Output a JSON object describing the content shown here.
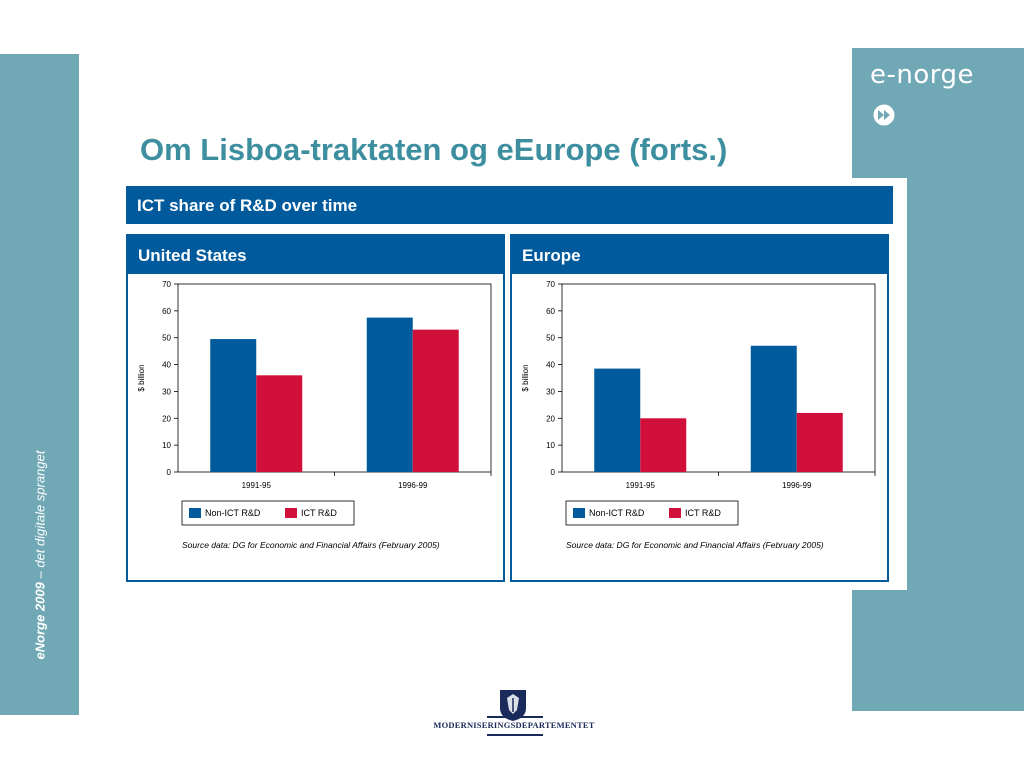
{
  "sidebar": {
    "brand": "eNorge 2009",
    "tagline": "det digitale spranget",
    "separator": " – "
  },
  "logo": {
    "text": "e-norge",
    "color": "#ffffff"
  },
  "slide": {
    "title": "Om Lisboa-traktaten og eEurope (forts.)",
    "title_color": "#3d8fa0"
  },
  "figure": {
    "header": "ICT share of R&D over time",
    "header_color": "#005a9c",
    "source": "Source data: DG for Economic and Financial Affairs (February 2005)"
  },
  "chart_data": [
    {
      "type": "bar",
      "title": "United States",
      "categories": [
        "1991-95",
        "1996-99"
      ],
      "series": [
        {
          "name": "Non-ICT R&D",
          "color": "#005a9c",
          "values": [
            49.5,
            57.5
          ]
        },
        {
          "name": "ICT R&D",
          "color": "#d0103a",
          "values": [
            36,
            53
          ]
        }
      ],
      "ylabel": "$ billion",
      "ylim": [
        0,
        70
      ],
      "yticks": [
        0,
        10,
        20,
        30,
        40,
        50,
        60,
        70
      ],
      "legend": "bottom-left"
    },
    {
      "type": "bar",
      "title": "Europe",
      "categories": [
        "1991-95",
        "1996-99"
      ],
      "series": [
        {
          "name": "Non-ICT R&D",
          "color": "#005a9c",
          "values": [
            38.5,
            47
          ]
        },
        {
          "name": "ICT R&D",
          "color": "#d0103a",
          "values": [
            20,
            22
          ]
        }
      ],
      "ylabel": "$ billion",
      "ylim": [
        0,
        70
      ],
      "yticks": [
        0,
        10,
        20,
        30,
        40,
        50,
        60,
        70
      ],
      "legend": "bottom-left"
    }
  ],
  "footer": {
    "ministry": "MODERNISERINGSDEPARTEMENTET"
  }
}
